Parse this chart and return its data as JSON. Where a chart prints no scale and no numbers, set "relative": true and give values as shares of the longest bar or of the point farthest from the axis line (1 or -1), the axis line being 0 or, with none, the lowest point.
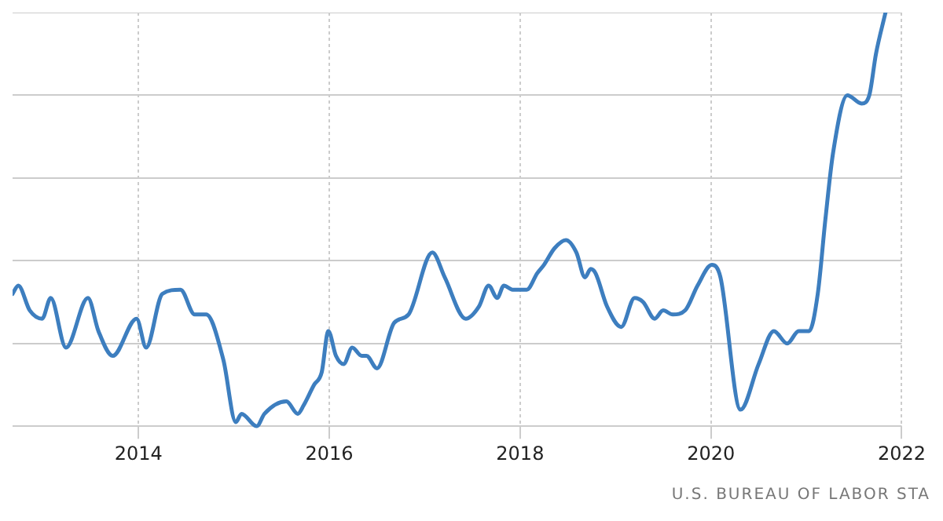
{
  "chart_data": {
    "type": "line",
    "relative": true,
    "x": [
      2012.68,
      2012.74,
      2012.86,
      2012.99,
      2013.08,
      2013.24,
      2013.47,
      2013.58,
      2013.73,
      2013.98,
      2014.08,
      2014.25,
      2014.44,
      2014.59,
      2014.71,
      2014.89,
      2015.02,
      2015.08,
      2015.24,
      2015.32,
      2015.55,
      2015.67,
      2015.73,
      2015.84,
      2015.92,
      2015.99,
      2016.07,
      2016.15,
      2016.24,
      2016.34,
      2016.39,
      2016.5,
      2016.68,
      2016.83,
      2017.08,
      2017.21,
      2017.43,
      2017.57,
      2017.67,
      2017.76,
      2017.83,
      2017.92,
      2018.07,
      2018.18,
      2018.25,
      2018.36,
      2018.48,
      2018.59,
      2018.68,
      2018.74,
      2018.79,
      2018.91,
      2019.06,
      2019.2,
      2019.29,
      2019.41,
      2019.5,
      2019.6,
      2019.73,
      2019.86,
      2020.01,
      2020.1,
      2020.31,
      2020.5,
      2020.66,
      2020.8,
      2020.92,
      2021.03,
      2021.12,
      2021.2,
      2021.28,
      2021.43,
      2021.58,
      2021.66,
      2021.73,
      2021.83
    ],
    "series": [
      {
        "color": "#3d7ebf",
        "values": [
          0.32,
          0.34,
          0.28,
          0.26,
          0.31,
          0.19,
          0.31,
          0.23,
          0.17,
          0.26,
          0.19,
          0.32,
          0.33,
          0.27,
          0.27,
          0.16,
          0.01,
          0.03,
          0,
          0.03,
          0.06,
          0.03,
          0.05,
          0.1,
          0.13,
          0.23,
          0.17,
          0.15,
          0.19,
          0.17,
          0.17,
          0.14,
          0.25,
          0.27,
          0.42,
          0.36,
          0.26,
          0.29,
          0.34,
          0.31,
          0.34,
          0.33,
          0.33,
          0.37,
          0.39,
          0.43,
          0.45,
          0.42,
          0.36,
          0.38,
          0.37,
          0.29,
          0.24,
          0.31,
          0.3,
          0.26,
          0.28,
          0.27,
          0.28,
          0.34,
          0.39,
          0.36,
          0.04,
          0.15,
          0.23,
          0.2,
          0.23,
          0.23,
          0.32,
          0.5,
          0.66,
          0.8,
          0.78,
          0.8,
          0.9,
          1
        ]
      }
    ],
    "xlim": [
      2012.68,
      2022
    ],
    "xticks": [
      2014,
      2016,
      2018,
      2020,
      2022
    ],
    "grid": true,
    "legend": false,
    "marker": "none",
    "line_style": "solid",
    "tick_labels": "x",
    "annotations": [
      "U.S. BUREAU OF LABOR STA"
    ]
  }
}
